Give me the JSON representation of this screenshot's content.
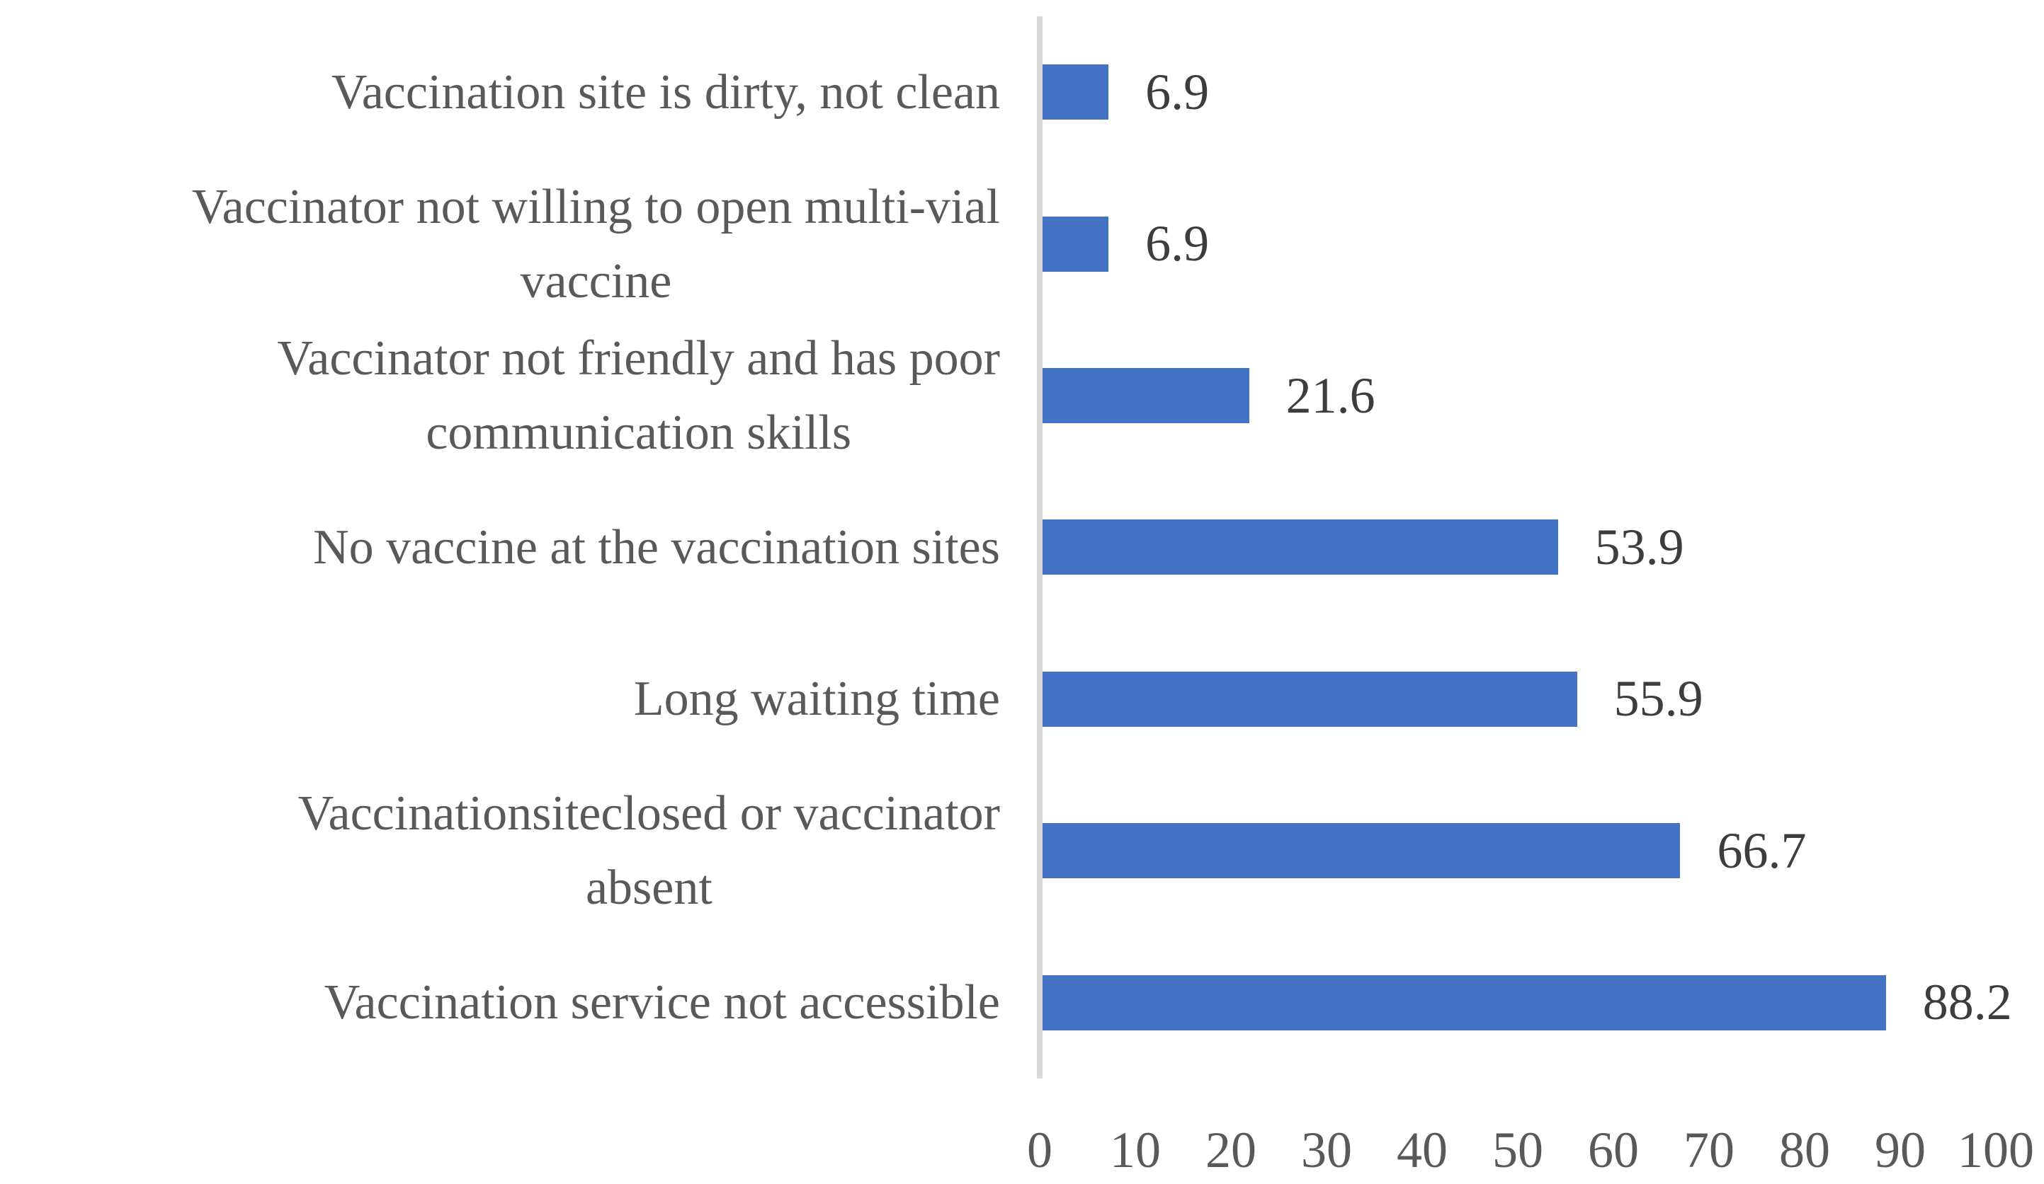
{
  "chart_data": {
    "type": "bar",
    "orientation": "horizontal",
    "title": "",
    "xlabel": "",
    "ylabel": "",
    "categories": [
      "Vaccination site is dirty, not clean",
      "Vaccinator not willing to open multi-vial vaccine",
      "Vaccinator not friendly and has poor communication skills",
      "No vaccine at the vaccination sites",
      "Long waiting time",
      "Vaccinationsiteclosed or vaccinator absent",
      "Vaccination service not accessible"
    ],
    "categories_display": [
      "Vaccination site is dirty, not clean",
      "Vaccinator not willing to open multi-vial\nvaccine",
      "Vaccinator not friendly and has poor\ncommunication skills",
      "No vaccine at the vaccination sites",
      "Long waiting time",
      "Vaccinationsiteclosed or vaccinator\nabsent",
      "Vaccination service not accessible"
    ],
    "values": [
      6.9,
      6.9,
      21.6,
      53.9,
      55.9,
      66.7,
      88.2
    ],
    "value_labels": [
      "6.9",
      "6.9",
      "21.6",
      "53.9",
      "55.9",
      "66.7",
      "88.2"
    ],
    "xlim": [
      0,
      100
    ],
    "x_ticks": [
      0,
      10,
      20,
      30,
      40,
      50,
      60,
      70,
      80,
      90,
      100
    ],
    "x_tick_labels": [
      "0",
      "10",
      "20",
      "30",
      "40",
      "50",
      "60",
      "70",
      "80",
      "90",
      "100"
    ],
    "grid": false,
    "legend": false,
    "bar_color": "#4472C4",
    "axis_line_color": "#D9D9D9",
    "category_label_color": "#595959",
    "value_label_color": "#3d3d3d",
    "tick_label_color": "#595959"
  },
  "layout_note": ""
}
